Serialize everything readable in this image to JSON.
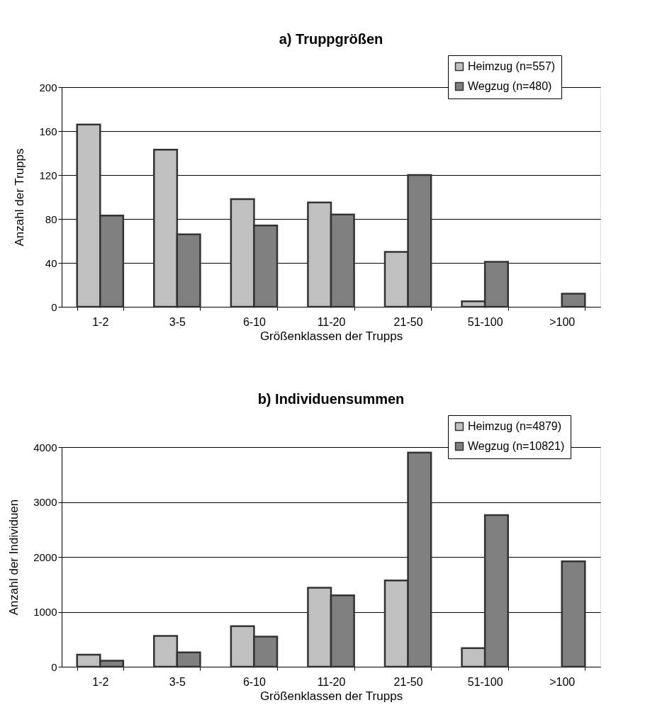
{
  "chart_data": [
    {
      "type": "bar",
      "title": "a)  Truppgrößen",
      "xlabel": "Größenklassen der Trupps",
      "ylabel": "Anzahl der Trupps",
      "categories": [
        "1-2",
        "3-5",
        "6-10",
        "11-20",
        "21-50",
        "51-100",
        ">100"
      ],
      "series": [
        {
          "name": "Heimzug (n=557)",
          "color": "#c0c0c0",
          "values": [
            166,
            143,
            98,
            95,
            50,
            5,
            null
          ]
        },
        {
          "name": "Wegzug (n=480)",
          "color": "#808080",
          "values": [
            83,
            66,
            74,
            84,
            120,
            41,
            12
          ]
        }
      ],
      "ylim": [
        0,
        200
      ],
      "yticks": [
        0,
        40,
        80,
        120,
        160,
        200
      ],
      "grid": "y",
      "legend": "top right"
    },
    {
      "type": "bar",
      "title": "b)  Individuensummen",
      "xlabel": "Größenklassen der Trupps",
      "ylabel": "Anzahl der Individuen",
      "categories": [
        "1-2",
        "3-5",
        "6-10",
        "11-20",
        "21-50",
        "51-100",
        ">100"
      ],
      "series": [
        {
          "name": "Heimzug (n=4879)",
          "color": "#c0c0c0",
          "values": [
            220,
            560,
            740,
            1440,
            1570,
            340,
            null
          ]
        },
        {
          "name": "Wegzug (n=10821)",
          "color": "#808080",
          "values": [
            110,
            260,
            550,
            1300,
            3900,
            2760,
            1920
          ]
        }
      ],
      "ylim": [
        0,
        4000
      ],
      "yticks": [
        0,
        1000,
        2000,
        3000,
        4000
      ],
      "grid": "y",
      "legend": "top right"
    }
  ]
}
